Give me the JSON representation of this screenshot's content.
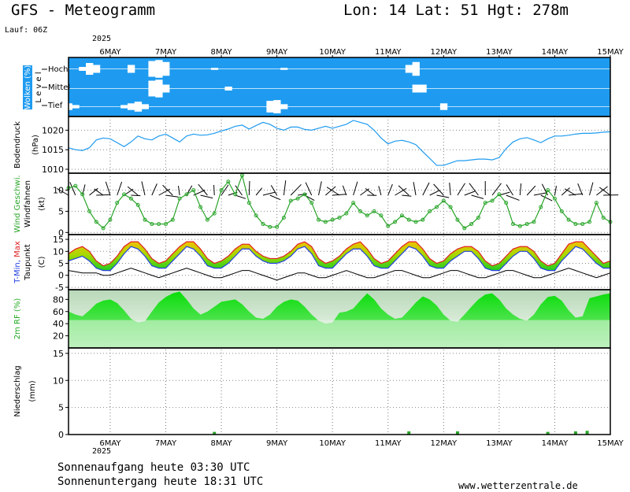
{
  "header": {
    "title": "GFS - Meteogramm",
    "location": "Lon: 14 Lat: 51 Hgt: 278m",
    "run": "Lauf: 06Z",
    "year_top": "2025",
    "year_bottom": "2025"
  },
  "footer": {
    "sunrise": "Sonnenaufgang heute 03:30 UTC",
    "sunset": "Sonnenuntergang heute 18:31 UTC",
    "website": "www.wetterzentrale.de"
  },
  "colors": {
    "cloud": "#1e9bf0",
    "pressure_line": "#1e9bf0",
    "wind_line": "#2aa52a",
    "temp_max": "#e02020",
    "temp_min": "#2040e0",
    "rh_fill": "#22dd22",
    "rh_bg": "#cfe8cf",
    "temp_fill_warm": "#f2c200",
    "temp_fill_mid": "#a8d800",
    "temp_fill_cool": "#22cc22",
    "precip": "#2aa52a"
  },
  "chart_data": [
    {
      "type": "area",
      "panel": "clouds",
      "ylabel": "Wolken (%)",
      "ylabel2": "L e v e l",
      "categories": [
        "6MAY",
        "7MAY",
        "8MAY",
        "9MAY",
        "10MAY",
        "11MAY",
        "12MAY",
        "13MAY",
        "14MAY",
        "15MAY"
      ],
      "levels": [
        "Hoch",
        "Mittel",
        "Tief"
      ],
      "x": [
        0,
        3,
        6,
        9,
        12,
        15,
        18,
        21,
        24,
        27,
        30,
        33,
        36,
        39,
        42,
        45,
        48,
        51,
        54,
        57,
        60,
        63,
        66,
        69,
        72,
        75,
        78,
        81,
        84,
        87,
        90,
        93,
        96,
        99,
        102,
        105,
        108,
        111,
        114,
        117,
        120,
        123,
        126,
        129,
        132,
        135,
        138,
        141,
        144,
        147,
        150,
        153,
        156,
        159,
        162,
        165,
        168,
        171,
        174,
        177,
        180,
        183,
        186,
        189,
        192,
        195,
        198,
        201,
        204,
        207,
        210,
        213,
        216,
        219,
        222,
        225,
        228,
        231,
        234
      ],
      "series": [
        {
          "name": "Hoch",
          "values": [
            100,
            100,
            80,
            40,
            60,
            100,
            100,
            100,
            100,
            60,
            100,
            100,
            20,
            10,
            30,
            100,
            100,
            100,
            100,
            100,
            100,
            90,
            100,
            100,
            100,
            100,
            100,
            100,
            100,
            100,
            100,
            90,
            100,
            100,
            100,
            100,
            100,
            100,
            100,
            100,
            100,
            100,
            100,
            100,
            100,
            100,
            100,
            100,
            100,
            60,
            30,
            100,
            100,
            100,
            100,
            100,
            100,
            100,
            100,
            100,
            100,
            100,
            100,
            100,
            100,
            100,
            100,
            100,
            100,
            100,
            100,
            100,
            100,
            100,
            100,
            100,
            100,
            100,
            100
          ]
        },
        {
          "name": "Mittel",
          "values": [
            100,
            100,
            100,
            100,
            100,
            100,
            100,
            100,
            100,
            100,
            100,
            100,
            20,
            10,
            60,
            100,
            100,
            100,
            100,
            100,
            100,
            100,
            100,
            80,
            100,
            100,
            100,
            100,
            100,
            100,
            100,
            100,
            100,
            100,
            100,
            100,
            100,
            100,
            100,
            100,
            100,
            100,
            100,
            100,
            100,
            100,
            100,
            100,
            100,
            100,
            60,
            60,
            100,
            100,
            100,
            100,
            100,
            100,
            100,
            100,
            100,
            100,
            100,
            100,
            100,
            100,
            100,
            100,
            100,
            100,
            100,
            100,
            100,
            100,
            100,
            100,
            100,
            100,
            100
          ]
        },
        {
          "name": "Tief",
          "values": [
            60,
            80,
            100,
            100,
            100,
            100,
            100,
            100,
            80,
            60,
            40,
            70,
            100,
            100,
            100,
            100,
            100,
            100,
            100,
            100,
            100,
            100,
            100,
            100,
            100,
            100,
            100,
            100,
            100,
            30,
            20,
            70,
            100,
            100,
            100,
            100,
            100,
            100,
            100,
            100,
            100,
            100,
            100,
            100,
            100,
            100,
            100,
            100,
            100,
            100,
            100,
            100,
            100,
            100,
            60,
            100,
            100,
            100,
            100,
            100,
            100,
            100,
            100,
            100,
            100,
            100,
            100,
            100,
            100,
            100,
            100,
            100,
            100,
            100,
            100,
            100,
            100,
            100,
            100
          ]
        }
      ]
    },
    {
      "type": "line",
      "panel": "pressure",
      "ylabel": "Bodendruck",
      "ylabel2": "(hPa)",
      "ylim": [
        1009,
        1023.5
      ],
      "ticks": [
        1010,
        1015,
        1020
      ],
      "x": [
        0,
        3,
        6,
        9,
        12,
        15,
        18,
        21,
        24,
        27,
        30,
        33,
        36,
        39,
        42,
        45,
        48,
        51,
        54,
        57,
        60,
        63,
        66,
        69,
        72,
        75,
        78,
        81,
        84,
        87,
        90,
        93,
        96,
        99,
        102,
        105,
        108,
        111,
        114,
        117,
        120,
        123,
        126,
        129,
        132,
        135,
        138,
        141,
        144,
        147,
        150,
        153,
        156,
        159,
        162,
        165,
        168,
        171,
        174,
        177,
        180,
        183,
        186,
        189,
        192,
        195,
        198,
        201,
        204,
        207,
        210,
        213,
        216,
        219,
        222,
        225,
        228,
        231,
        234
      ],
      "values": [
        1015.5,
        1015,
        1014.8,
        1015.5,
        1017.5,
        1018,
        1017.8,
        1016.8,
        1015.8,
        1017,
        1018.5,
        1017.8,
        1017.5,
        1018.5,
        1019,
        1018,
        1017,
        1018.5,
        1019,
        1018.7,
        1018.8,
        1019.2,
        1019.8,
        1020.3,
        1021,
        1021.3,
        1020.3,
        1021.2,
        1022,
        1021.5,
        1020.5,
        1020,
        1020.8,
        1020.8,
        1020.2,
        1020,
        1020.5,
        1021,
        1020.5,
        1021,
        1021.5,
        1022.5,
        1022,
        1021.5,
        1020,
        1018,
        1016.5,
        1017.2,
        1017.4,
        1017,
        1016.3,
        1014.5,
        1012.8,
        1011,
        1011,
        1011.6,
        1012.2,
        1012.2,
        1012.4,
        1012.6,
        1012.6,
        1012.4,
        1013,
        1015.3,
        1017,
        1017.8,
        1018.1,
        1017.5,
        1016.8,
        1017.8,
        1018.5,
        1018.5,
        1018.7,
        1019,
        1019.2,
        1019.2,
        1019.3,
        1019.5,
        1019.6
      ]
    },
    {
      "type": "line",
      "panel": "wind",
      "ylabel": "Wind Geschwi.",
      "ylabel2": "Windfahnen",
      "ylabel3": "(kt)",
      "ylim": [
        -0.5,
        14
      ],
      "ticks": [
        0,
        5,
        10
      ],
      "x": [
        0,
        3,
        6,
        9,
        12,
        15,
        18,
        21,
        24,
        27,
        30,
        33,
        36,
        39,
        42,
        45,
        48,
        51,
        54,
        57,
        60,
        63,
        66,
        69,
        72,
        75,
        78,
        81,
        84,
        87,
        90,
        93,
        96,
        99,
        102,
        105,
        108,
        111,
        114,
        117,
        120,
        123,
        126,
        129,
        132,
        135,
        138,
        141,
        144,
        147,
        150,
        153,
        156,
        159,
        162,
        165,
        168,
        171,
        174,
        177,
        180,
        183,
        186,
        189,
        192,
        195,
        198,
        201,
        204,
        207,
        210,
        213,
        216,
        219,
        222,
        225,
        228,
        231,
        234
      ],
      "values": [
        10.5,
        11,
        9,
        5,
        2.5,
        1,
        3,
        7,
        9,
        8,
        6.5,
        3,
        2,
        2,
        2,
        3,
        8,
        9,
        10,
        6,
        3,
        4.5,
        10,
        12,
        9,
        13.5,
        7,
        4,
        2,
        1.3,
        1.3,
        3.5,
        7.5,
        8,
        9,
        7,
        3,
        2.5,
        3,
        3.5,
        4.5,
        7,
        5,
        4,
        5,
        4,
        1.5,
        2.5,
        4,
        3,
        2.5,
        3,
        5,
        6,
        7.5,
        6,
        3,
        1,
        2,
        3.5,
        7,
        7.5,
        9,
        7,
        2,
        1.5,
        2,
        2.5,
        6,
        10,
        8,
        5,
        3,
        2,
        2,
        2.5,
        7,
        3.5,
        2.5
      ]
    },
    {
      "type": "area",
      "panel": "temperature",
      "ylabel": "T-Min, Max",
      "ylabel2": "Taupunkt",
      "ylabel3": "(C)",
      "ylim": [
        -6,
        17
      ],
      "ticks": [
        -5,
        0,
        5,
        10,
        15
      ],
      "x": [
        0,
        3,
        6,
        9,
        12,
        15,
        18,
        21,
        24,
        27,
        30,
        33,
        36,
        39,
        42,
        45,
        48,
        51,
        54,
        57,
        60,
        63,
        66,
        69,
        72,
        75,
        78,
        81,
        84,
        87,
        90,
        93,
        96,
        99,
        102,
        105,
        108,
        111,
        114,
        117,
        120,
        123,
        126,
        129,
        132,
        135,
        138,
        141,
        144,
        147,
        150,
        153,
        156,
        159,
        162,
        165,
        168,
        171,
        174,
        177,
        180,
        183,
        186,
        189,
        192,
        195,
        198,
        201,
        204,
        207,
        210,
        213,
        216,
        219,
        222,
        225,
        228,
        231,
        234
      ],
      "series": [
        {
          "name": "T-Max",
          "values": [
            9,
            11,
            12,
            10,
            6,
            4,
            5,
            8,
            12,
            14,
            14,
            11,
            7,
            5,
            6,
            9,
            12,
            14,
            14,
            11,
            7,
            5,
            6,
            8,
            11,
            13,
            13,
            10,
            8,
            7,
            7,
            8,
            10,
            13,
            14,
            12,
            7,
            5,
            6,
            8,
            11,
            13,
            14,
            11,
            7,
            5,
            6,
            9,
            12,
            14,
            14,
            11,
            7,
            5,
            6,
            9,
            11,
            12,
            12,
            10,
            6,
            4,
            5,
            8,
            11,
            12,
            12,
            10,
            6,
            4,
            5,
            9,
            13,
            14,
            14,
            11,
            8,
            5,
            6
          ]
        },
        {
          "name": "T-Min",
          "values": [
            6,
            7,
            8,
            6,
            3,
            2,
            2,
            5,
            9,
            12,
            11,
            8,
            4,
            3,
            3,
            6,
            9,
            12,
            11,
            8,
            4,
            3,
            3,
            5,
            8,
            11,
            11,
            8,
            6,
            5,
            5,
            6,
            8,
            11,
            12,
            9,
            4,
            3,
            3,
            6,
            9,
            11,
            11,
            8,
            4,
            3,
            3,
            6,
            9,
            12,
            11,
            8,
            4,
            3,
            3,
            6,
            8,
            10,
            10,
            7,
            3,
            2,
            2,
            5,
            8,
            10,
            10,
            7,
            3,
            2,
            2,
            6,
            9,
            12,
            11,
            8,
            5,
            3,
            3
          ]
        },
        {
          "name": "Taupunkt",
          "values": [
            2,
            1.5,
            1,
            1,
            1,
            0,
            0,
            1,
            2,
            3,
            2,
            1,
            0,
            -1,
            0,
            1,
            2,
            3,
            2,
            1,
            0,
            -1,
            -1,
            0,
            1,
            2,
            2,
            1,
            0,
            -1,
            -2,
            -1,
            0,
            1,
            1,
            0,
            -1,
            -1,
            0,
            1,
            2,
            1,
            0,
            -1,
            -1,
            0,
            1,
            2,
            2,
            1,
            0,
            -1,
            -1,
            0,
            1,
            2,
            2,
            1,
            0,
            -1,
            -1,
            0,
            1,
            2,
            2,
            1,
            0,
            -1,
            -1,
            0,
            1,
            2,
            3,
            2,
            1,
            0,
            -1,
            0,
            1
          ]
        }
      ]
    },
    {
      "type": "area",
      "panel": "humidity",
      "ylabel": "2m RF (%)",
      "ylim": [
        0,
        96
      ],
      "ticks": [
        20,
        40,
        60,
        80
      ],
      "x": [
        0,
        3,
        6,
        9,
        12,
        15,
        18,
        21,
        24,
        27,
        30,
        33,
        36,
        39,
        42,
        45,
        48,
        51,
        54,
        57,
        60,
        63,
        66,
        69,
        72,
        75,
        78,
        81,
        84,
        87,
        90,
        93,
        96,
        99,
        102,
        105,
        108,
        111,
        114,
        117,
        120,
        123,
        126,
        129,
        132,
        135,
        138,
        141,
        144,
        147,
        150,
        153,
        156,
        159,
        162,
        165,
        168,
        171,
        174,
        177,
        180,
        183,
        186,
        189,
        192,
        195,
        198,
        201,
        204,
        207,
        210,
        213,
        216,
        219,
        222,
        225,
        228,
        231,
        234
      ],
      "values": [
        60,
        55,
        52,
        62,
        73,
        78,
        80,
        74,
        62,
        48,
        42,
        44,
        60,
        75,
        84,
        90,
        93,
        80,
        65,
        55,
        60,
        68,
        76,
        78,
        80,
        72,
        60,
        50,
        48,
        55,
        68,
        76,
        80,
        78,
        68,
        55,
        45,
        40,
        42,
        58,
        60,
        65,
        78,
        90,
        80,
        65,
        55,
        48,
        50,
        62,
        75,
        85,
        80,
        70,
        55,
        45,
        43,
        55,
        68,
        80,
        88,
        90,
        80,
        65,
        55,
        48,
        45,
        55,
        72,
        84,
        86,
        78,
        62,
        50,
        52,
        82,
        85,
        88,
        90
      ]
    },
    {
      "type": "bar",
      "panel": "precipitation",
      "ylabel": "Niederschlag",
      "ylabel2": "(mm)",
      "ylim": [
        0,
        16
      ],
      "ticks": [
        0,
        5,
        10,
        15
      ],
      "x": [
        63,
        147,
        168,
        207,
        219,
        224
      ],
      "values": [
        0.2,
        0.3,
        0.3,
        0.2,
        0.3,
        0.4
      ]
    }
  ]
}
